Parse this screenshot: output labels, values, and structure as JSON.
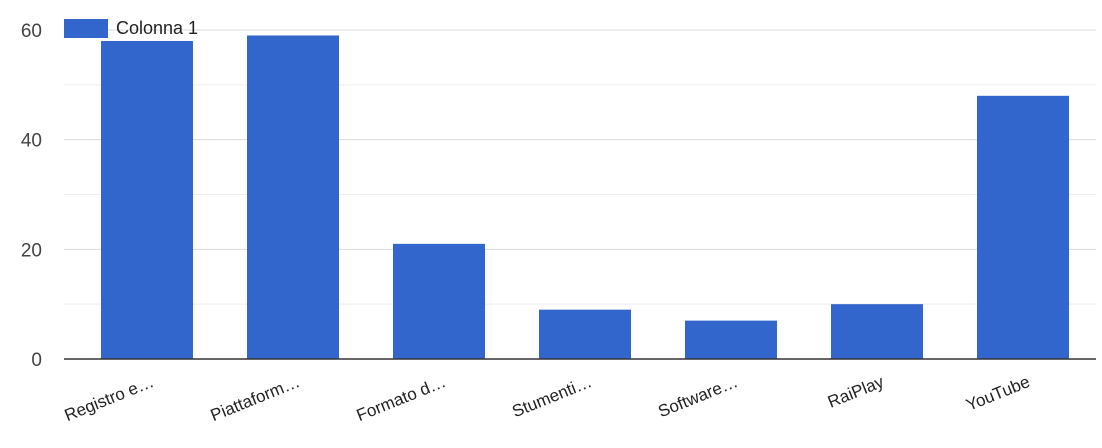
{
  "colors": {
    "bar": "#3366cc",
    "grid_major": "#d9d9d9",
    "grid_minor": "#eeeeee",
    "axis": "#333333"
  },
  "chart_data": {
    "type": "bar",
    "title": "",
    "xlabel": "",
    "ylabel": "",
    "categories": [
      "Registro e…",
      "Piattaform…",
      "Formato d…",
      "Stumenti…",
      "Software…",
      "RaiPlay",
      "YouTube"
    ],
    "series": [
      {
        "name": "Colonna 1",
        "values": [
          58,
          59,
          21,
          9,
          7,
          10,
          48
        ]
      }
    ],
    "ylim": [
      0,
      60
    ],
    "yticks": [
      0,
      20,
      40,
      60
    ],
    "grid": true,
    "legend": "top-left"
  }
}
